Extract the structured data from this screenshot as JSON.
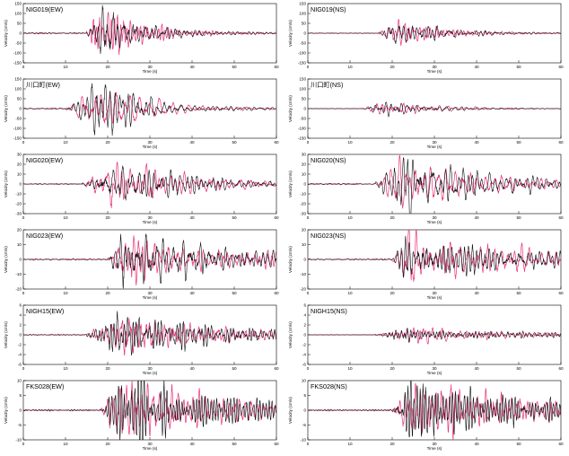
{
  "figure": {
    "x_axis_label": "Time (s)",
    "y_axis_label": "Velocity (cm/s)",
    "colors": {
      "observed": "#111111",
      "synthetic": "#e8347a",
      "axis": "#000000"
    }
  },
  "chart_data": [
    {
      "type": "line",
      "title": "NIG019(EW)",
      "xlim": [
        0,
        60
      ],
      "ylim": [
        -150,
        150
      ],
      "yticks": [
        -150,
        -100,
        -50,
        0,
        50,
        100,
        150
      ],
      "xticks": [
        0,
        10,
        20,
        30,
        40,
        50,
        60
      ],
      "xlabel": "Time (s)",
      "ylabel": "Velocity (cm/s)",
      "onset": 15,
      "peak_time": 19,
      "peak_amplitude": 140,
      "duration": 10,
      "tail": 6,
      "freq": 0.75
    },
    {
      "type": "line",
      "title": "NIG019(NS)",
      "xlim": [
        0,
        60
      ],
      "ylim": [
        -150,
        150
      ],
      "yticks": [
        -150,
        -100,
        -50,
        0,
        50,
        100,
        150
      ],
      "xticks": [
        0,
        10,
        20,
        30,
        40,
        50,
        60
      ],
      "xlabel": "Time (s)",
      "ylabel": "Velocity (cm/s)",
      "onset": 17,
      "peak_time": 21,
      "peak_amplitude": 60,
      "duration": 12,
      "tail": 4,
      "freq": 0.7
    },
    {
      "type": "line",
      "title": "川口町(EW)",
      "xlim": [
        0,
        60
      ],
      "ylim": [
        -150,
        150
      ],
      "yticks": [
        -150,
        -100,
        -50,
        0,
        50,
        100,
        150
      ],
      "xticks": [
        0,
        10,
        20,
        30,
        40,
        50,
        60
      ],
      "xlabel": "Time (s)",
      "ylabel": "Velocity (cm/s)",
      "onset": 10,
      "peak_time": 18,
      "peak_amplitude": 115,
      "duration": 12,
      "tail": 6,
      "freq": 0.5
    },
    {
      "type": "line",
      "title": "川口町(NS)",
      "xlim": [
        0,
        60
      ],
      "ylim": [
        -150,
        150
      ],
      "yticks": [
        -150,
        -100,
        -50,
        0,
        50,
        100,
        150
      ],
      "xticks": [
        0,
        10,
        20,
        30,
        40,
        50,
        60
      ],
      "xlabel": "Time (s)",
      "ylabel": "Velocity (cm/s)",
      "onset": 13,
      "peak_time": 18,
      "peak_amplitude": 35,
      "duration": 12,
      "tail": 4,
      "freq": 0.6
    },
    {
      "type": "line",
      "title": "NIG020(EW)",
      "xlim": [
        0,
        60
      ],
      "ylim": [
        -30,
        30
      ],
      "yticks": [
        -30,
        -20,
        -10,
        0,
        10,
        20,
        30
      ],
      "xticks": [
        0,
        10,
        20,
        30,
        40,
        50,
        60
      ],
      "xlabel": "Time (s)",
      "ylabel": "Velocity (cm/s)",
      "onset": 14,
      "peak_time": 21,
      "peak_amplitude": 18,
      "duration": 22,
      "tail": 2,
      "freq": 0.55
    },
    {
      "type": "line",
      "title": "NIG020(NS)",
      "xlim": [
        0,
        60
      ],
      "ylim": [
        -30,
        30
      ],
      "yticks": [
        -30,
        -20,
        -10,
        0,
        10,
        20,
        30
      ],
      "xticks": [
        0,
        10,
        20,
        30,
        40,
        50,
        60
      ],
      "xlabel": "Time (s)",
      "ylabel": "Velocity (cm/s)",
      "onset": 16,
      "peak_time": 22,
      "peak_amplitude": 22,
      "duration": 22,
      "tail": 2,
      "freq": 0.55
    },
    {
      "type": "line",
      "title": "NIG023(EW)",
      "xlim": [
        0,
        60
      ],
      "ylim": [
        -20,
        20
      ],
      "yticks": [
        -20,
        -10,
        0,
        10,
        20
      ],
      "xticks": [
        0,
        10,
        20,
        30,
        40,
        50,
        60
      ],
      "xlabel": "Time (s)",
      "ylabel": "Velocity (cm/s)",
      "onset": 20,
      "peak_time": 23,
      "peak_amplitude": 17,
      "duration": 30,
      "tail": 5,
      "freq": 0.7
    },
    {
      "type": "line",
      "title": "NIG023(NS)",
      "xlim": [
        0,
        60
      ],
      "ylim": [
        -20,
        20
      ],
      "yticks": [
        -20,
        -10,
        0,
        10,
        20
      ],
      "xticks": [
        0,
        10,
        20,
        30,
        40,
        50,
        60
      ],
      "xlabel": "Time (s)",
      "ylabel": "Velocity (cm/s)",
      "onset": 20,
      "peak_time": 23,
      "peak_amplitude": 16,
      "duration": 30,
      "tail": 5,
      "freq": 0.7
    },
    {
      "type": "line",
      "title": "NIGH15(EW)",
      "xlim": [
        0,
        60
      ],
      "ylim": [
        -6,
        6
      ],
      "yticks": [
        -6,
        -4,
        -2,
        0,
        2,
        4,
        6
      ],
      "xticks": [
        0,
        10,
        20,
        30,
        40,
        50,
        60
      ],
      "xlabel": "Time (s)",
      "ylabel": "Velocity (cm/s)",
      "onset": 15,
      "peak_time": 23,
      "peak_amplitude": 4,
      "duration": 25,
      "tail": 3,
      "freq": 0.8
    },
    {
      "type": "line",
      "title": "NIGH15(NS)",
      "xlim": [
        0,
        60
      ],
      "ylim": [
        -6,
        6
      ],
      "yticks": [
        -6,
        -4,
        -2,
        0,
        2,
        4,
        6
      ],
      "xticks": [
        0,
        10,
        20,
        30,
        40,
        50,
        60
      ],
      "xlabel": "Time (s)",
      "ylabel": "Velocity (cm/s)",
      "onset": 16,
      "peak_time": 24,
      "peak_amplitude": 1.5,
      "duration": 25,
      "tail": 3,
      "freq": 0.8
    },
    {
      "type": "line",
      "title": "FKS028(EW)",
      "xlim": [
        0,
        60
      ],
      "ylim": [
        -10,
        10
      ],
      "yticks": [
        -10,
        -5,
        0,
        5,
        10
      ],
      "xticks": [
        0,
        10,
        20,
        30,
        40,
        50,
        60
      ],
      "xlabel": "Time (s)",
      "ylabel": "Velocity (cm/s)",
      "onset": 18,
      "peak_time": 23,
      "peak_amplitude": 9,
      "duration": 30,
      "tail": 4,
      "freq": 0.9
    },
    {
      "type": "line",
      "title": "FKS028(NS)",
      "xlim": [
        0,
        60
      ],
      "ylim": [
        -10,
        10
      ],
      "yticks": [
        -10,
        -5,
        0,
        5,
        10
      ],
      "xticks": [
        0,
        10,
        20,
        30,
        40,
        50,
        60
      ],
      "xlabel": "Time (s)",
      "ylabel": "Velocity (cm/s)",
      "onset": 20,
      "peak_time": 24,
      "peak_amplitude": 9,
      "duration": 30,
      "tail": 4,
      "freq": 0.9
    }
  ]
}
